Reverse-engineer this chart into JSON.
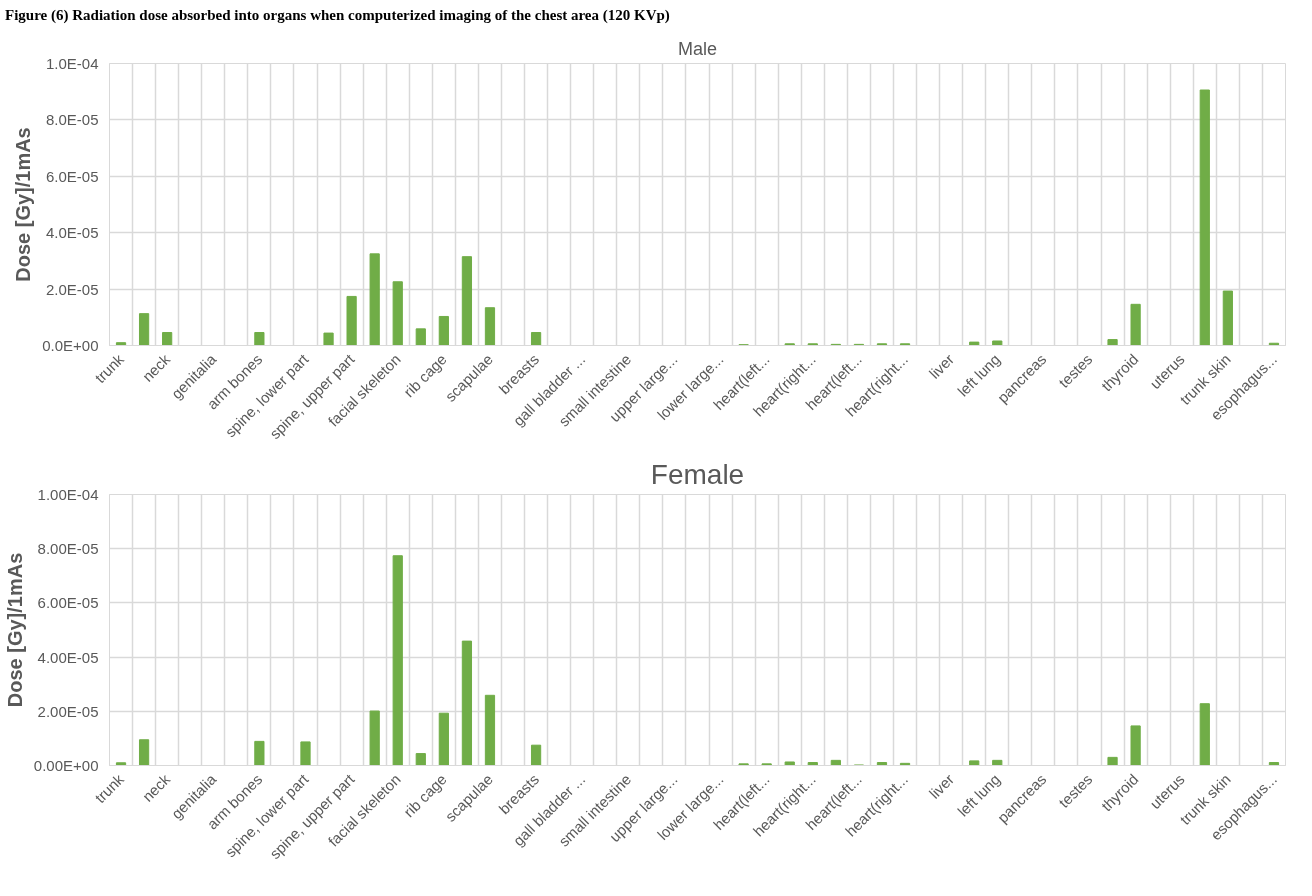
{
  "chart_data": [
    {
      "type": "bar",
      "title": "Male",
      "ylabel": "Dose [Gy]/1mAs",
      "annotations": [
        "Figure (6) Radiation dose absorbed into organs when computerized imaging of the chest area (120 KVp)"
      ],
      "categories": [
        "trunk",
        null,
        "neck",
        null,
        "genitalia",
        null,
        "arm bones",
        null,
        "spine, lower part",
        null,
        "spine, upper part",
        null,
        "facial skeleton",
        null,
        "rib cage",
        null,
        "scapulae",
        null,
        "breasts",
        null,
        "gall bladder ...",
        null,
        "small intestine",
        null,
        "upper large...",
        null,
        "lower large...",
        null,
        "heart(left...",
        null,
        "heart(right...",
        null,
        "heart(left...",
        null,
        "heart(right...",
        null,
        "liver",
        null,
        "left lung",
        null,
        "pancreas",
        null,
        "testes",
        null,
        "thyroid",
        null,
        "uterus",
        null,
        "trunk skin",
        null,
        "esophagus..."
      ],
      "values": [
        1e-06,
        1.13e-05,
        4.6e-06,
        0,
        0,
        0,
        4.6e-06,
        0,
        0,
        4.4e-06,
        1.74e-05,
        3.25e-05,
        2.26e-05,
        5.9e-06,
        1.03e-05,
        3.15e-05,
        1.34e-05,
        0,
        4.6e-06,
        0,
        0,
        0,
        0,
        0,
        0,
        0,
        0,
        3e-07,
        0,
        6e-07,
        6e-07,
        4e-07,
        4e-07,
        6e-07,
        6e-07,
        0,
        0,
        1.2e-06,
        1.6e-06,
        0,
        0,
        0,
        0,
        2.1e-06,
        1.46e-05,
        0,
        0,
        9.06e-05,
        1.93e-05,
        0,
        8e-07
      ],
      "color": "#70ad47",
      "ylim": [
        0,
        0.0001
      ],
      "yticks": [
        {
          "value": 0,
          "label": "0.0E+00"
        },
        {
          "value": 2e-05,
          "label": "2.0E-05"
        },
        {
          "value": 4e-05,
          "label": "4.0E-05"
        },
        {
          "value": 6e-05,
          "label": "6.0E-05"
        },
        {
          "value": 8e-05,
          "label": "8.0E-05"
        },
        {
          "value": 0.0001,
          "label": "1.0E-04"
        }
      ],
      "grid": true
    },
    {
      "type": "bar",
      "title": "Female",
      "ylabel": "Dose [Gy]/1mAs",
      "categories": [
        "trunk",
        null,
        "neck",
        null,
        "genitalia",
        null,
        "arm bones",
        null,
        "spine, lower part",
        null,
        "spine, upper part",
        null,
        "facial skeleton",
        null,
        "rib cage",
        null,
        "scapulae",
        null,
        "breasts",
        null,
        "gall bladder ...",
        null,
        "small intestine",
        null,
        "upper large...",
        null,
        "lower large...",
        null,
        "heart(left...",
        null,
        "heart(right...",
        null,
        "heart(left...",
        null,
        "heart(right...",
        null,
        "liver",
        null,
        "left lung",
        null,
        "pancreas",
        null,
        "testes",
        null,
        "thyroid",
        null,
        "uterus",
        null,
        "trunk skin",
        null,
        "esophagus..."
      ],
      "values": [
        1e-06,
        9.5e-06,
        0,
        0,
        0,
        0,
        8.9e-06,
        0,
        8.7e-06,
        0,
        0,
        2.01e-05,
        7.74e-05,
        4.4e-06,
        1.93e-05,
        4.59e-05,
        2.59e-05,
        0,
        7.5e-06,
        0,
        0,
        0,
        0,
        0,
        0,
        0,
        0,
        6e-07,
        6e-07,
        1.3e-06,
        1.1e-06,
        1.9e-06,
        2e-07,
        1.1e-06,
        8e-07,
        0,
        0,
        1.7e-06,
        1.9e-06,
        0,
        0,
        0,
        0,
        3e-06,
        1.46e-05,
        0,
        0,
        2.28e-05,
        0,
        0,
        1.1e-06
      ],
      "color": "#70ad47",
      "ylim": [
        0,
        0.0001
      ],
      "yticks": [
        {
          "value": 0,
          "label": "0.00E+00"
        },
        {
          "value": 2e-05,
          "label": "2.00E-05"
        },
        {
          "value": 4e-05,
          "label": "4.00E-05"
        },
        {
          "value": 6e-05,
          "label": "6.00E-05"
        },
        {
          "value": 8e-05,
          "label": "8.00E-05"
        },
        {
          "value": 0.0001,
          "label": "1.00E-04"
        }
      ],
      "grid": true
    }
  ]
}
